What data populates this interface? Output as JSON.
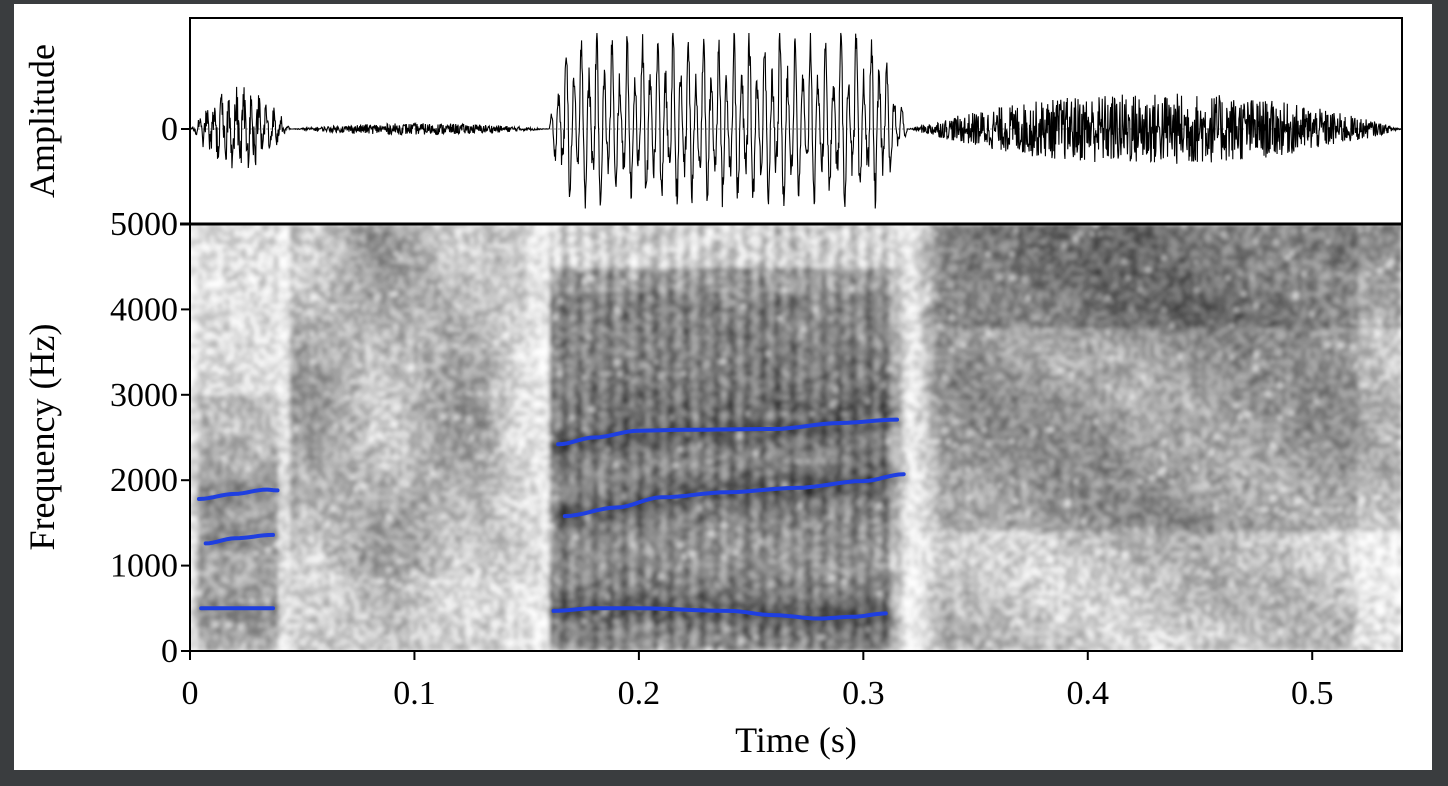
{
  "chart_data": [
    {
      "type": "line",
      "panel": "waveform",
      "ylabel": "Amplitude",
      "yticks": [
        {
          "value": 0,
          "label": "0"
        }
      ],
      "xlim": [
        0,
        0.54
      ],
      "segments": [
        {
          "t0": 0.0,
          "t1": 0.045,
          "kind": "burst",
          "amplitude": 0.42
        },
        {
          "t0": 0.045,
          "t1": 0.16,
          "kind": "noise",
          "amplitude": 0.06
        },
        {
          "t0": 0.16,
          "t1": 0.32,
          "kind": "voiced",
          "amplitude": 0.95
        },
        {
          "t0": 0.32,
          "t1": 0.54,
          "kind": "noise",
          "amplitude": 0.38
        }
      ]
    },
    {
      "type": "heatmap",
      "panel": "spectrogram",
      "xlabel": "Time (s)",
      "ylabel": "Frequency (Hz)",
      "xlim": [
        0,
        0.54
      ],
      "ylim": [
        0,
        5000
      ],
      "xticks": [
        {
          "value": 0,
          "label": "0"
        },
        {
          "value": 0.1,
          "label": "0.1"
        },
        {
          "value": 0.2,
          "label": "0.2"
        },
        {
          "value": 0.3,
          "label": "0.3"
        },
        {
          "value": 0.4,
          "label": "0.4"
        },
        {
          "value": 0.5,
          "label": "0.5"
        }
      ],
      "yticks": [
        {
          "value": 0,
          "label": "0"
        },
        {
          "value": 1000,
          "label": "1000"
        },
        {
          "value": 2000,
          "label": "2000"
        },
        {
          "value": 3000,
          "label": "3000"
        },
        {
          "value": 4000,
          "label": "4000"
        },
        {
          "value": 5000,
          "label": "5000"
        }
      ],
      "formant_color": "#1f3fe0",
      "formants": [
        {
          "points": [
            [
              0.005,
              500
            ],
            [
              0.037,
              500
            ]
          ]
        },
        {
          "points": [
            [
              0.007,
              1260
            ],
            [
              0.02,
              1320
            ],
            [
              0.037,
              1360
            ]
          ]
        },
        {
          "points": [
            [
              0.004,
              1780
            ],
            [
              0.02,
              1840
            ],
            [
              0.034,
              1890
            ],
            [
              0.039,
              1880
            ]
          ]
        },
        {
          "points": [
            [
              0.162,
              470
            ],
            [
              0.18,
              500
            ],
            [
              0.2,
              500
            ],
            [
              0.24,
              470
            ],
            [
              0.26,
              420
            ],
            [
              0.28,
              380
            ],
            [
              0.295,
              400
            ],
            [
              0.31,
              440
            ]
          ]
        },
        {
          "points": [
            [
              0.167,
              1580
            ],
            [
              0.19,
              1680
            ],
            [
              0.21,
              1800
            ],
            [
              0.24,
              1860
            ],
            [
              0.27,
              1910
            ],
            [
              0.3,
              1990
            ],
            [
              0.318,
              2070
            ]
          ]
        },
        {
          "points": [
            [
              0.164,
              2420
            ],
            [
              0.18,
              2500
            ],
            [
              0.2,
              2580
            ],
            [
              0.22,
              2590
            ],
            [
              0.26,
              2600
            ],
            [
              0.29,
              2670
            ],
            [
              0.315,
              2710
            ]
          ]
        }
      ]
    }
  ]
}
